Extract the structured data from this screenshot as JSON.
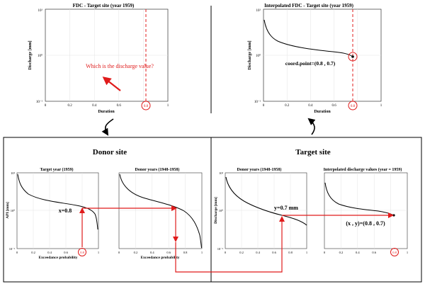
{
  "colors": {
    "accent": "#e01b1b",
    "line": "#000000",
    "grid": "#e3e3e3",
    "frame": "#333333"
  },
  "top": {
    "left_panel": {
      "title": "FDC - Target site (year 1959)",
      "ylabel": "Discharge [mm]",
      "xlabel": "Duration",
      "question": "Which is the discharge value?",
      "marker_label": "0.8",
      "yticks": [
        "10¹",
        "10⁰",
        "10⁻¹"
      ],
      "xticks": [
        "0",
        "0.2",
        "0.4",
        "0.6",
        "0.8",
        "1"
      ]
    },
    "right_panel": {
      "title": "Interpolated FDC - Target site (year 1959)",
      "ylabel": "Discharge [mm]",
      "xlabel": "Duration",
      "coord_label": "coord.point=(0.8 , 0.7)",
      "marker_label": "0.8",
      "yticks": [
        "10¹",
        "10⁰",
        "10⁻¹"
      ],
      "xticks": [
        "0",
        "0.2",
        "0.4",
        "0.6",
        "0.8",
        "1"
      ]
    }
  },
  "donor_site": {
    "heading": "Donor site",
    "target_year_plot": {
      "title": "Target year (1959)",
      "ylabel": "API [mm]",
      "xlabel": "Exceedance probability",
      "annotation": "x=0.8",
      "marker_label": "0.8",
      "yticks": [
        "10¹",
        "10⁰",
        "10⁻¹"
      ],
      "xticks": [
        "0",
        "0.2",
        "0.4",
        "0.6",
        "0.8",
        "1"
      ]
    },
    "donor_years_plot": {
      "title": "Donor years (1948-1958)",
      "xlabel": "Exceedance probability",
      "xticks": [
        "0",
        "0.2",
        "0.4",
        "0.6",
        "0.8",
        "1"
      ]
    }
  },
  "target_site": {
    "heading": "Target site",
    "donor_years_plot": {
      "title": "Donor years (1948-1958)",
      "ylabel": "Discharge [mm]",
      "annotation": "y=0.7 mm",
      "yticks": [
        "10¹",
        "10⁰",
        "10⁻¹"
      ],
      "xticks": [
        "0",
        "0.2",
        "0.4",
        "0.6",
        "0.8",
        "1"
      ]
    },
    "interpolated_plot": {
      "title": "Interpolated discharge values (year = 1959)",
      "annotation": "(x , y)=(0.8 , 0.7)",
      "marker_label": "0.8",
      "xticks": [
        "0",
        "0.2",
        "0.4",
        "0.6",
        "0.8",
        "1"
      ]
    }
  }
}
